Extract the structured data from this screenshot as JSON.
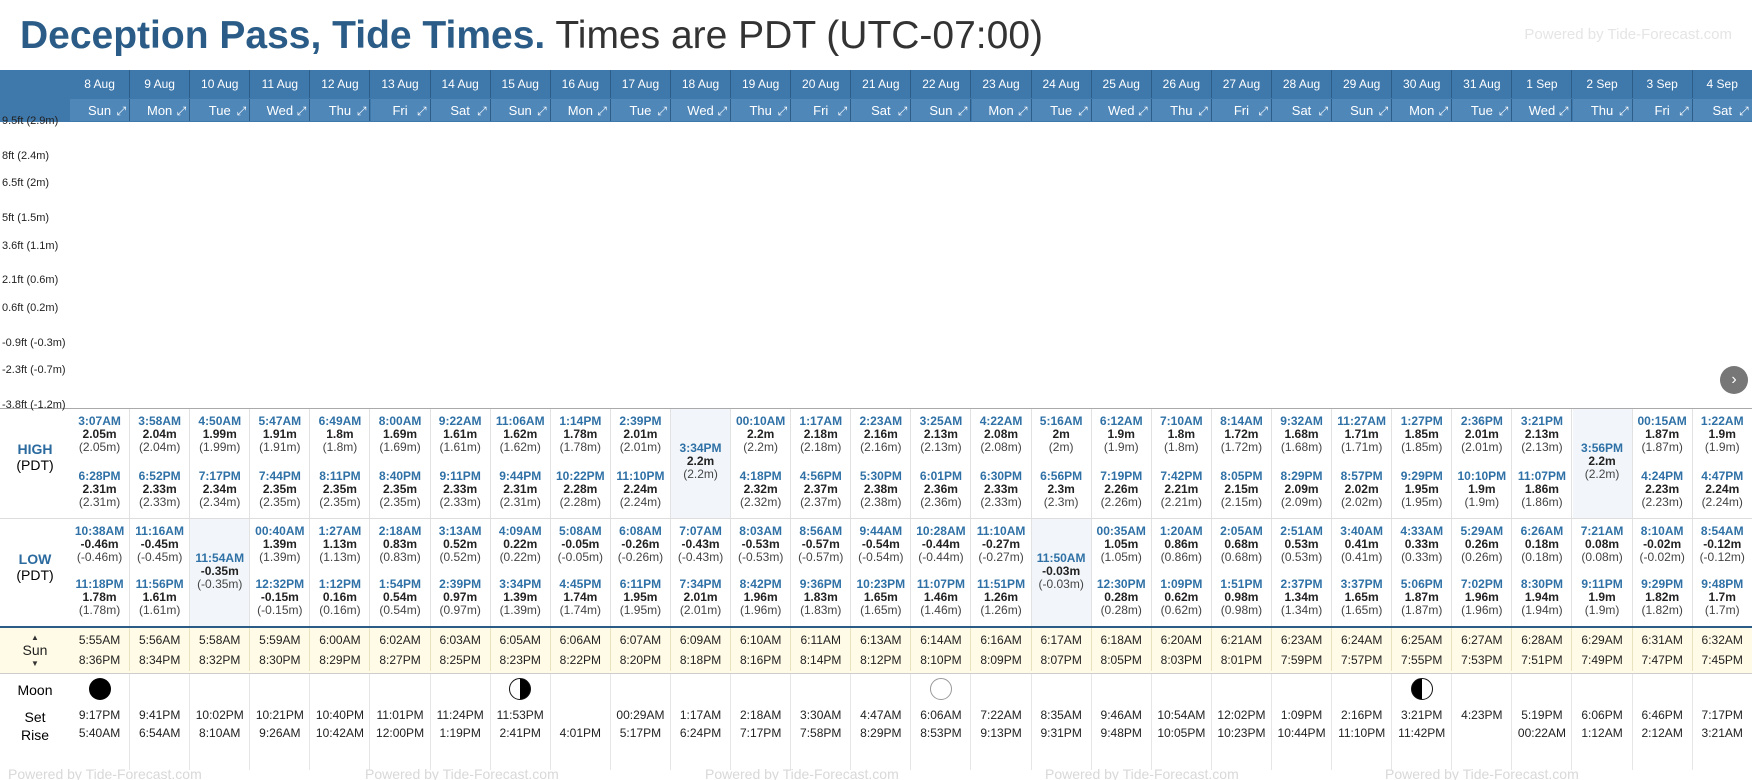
{
  "header": {
    "location": "Deception Pass, Tide Times.",
    "tz_text": "Times are PDT (UTC-07:00)",
    "powered": "Powered by Tide-Forecast.com"
  },
  "y_axis": [
    "9.5ft (2.9m)",
    "8ft (2.4m)",
    "6.5ft (2m)",
    "5ft (1.5m)",
    "3.6ft (1.1m)",
    "2.1ft (0.6m)",
    "0.6ft (0.2m)",
    "-0.9ft (-0.3m)",
    "-2.3ft (-0.7m)",
    "-3.8ft (-1.2m)"
  ],
  "labels": {
    "high": "HIGH",
    "low": "LOW",
    "tz": "(PDT)",
    "sun": "Sun",
    "moon": "Moon",
    "set": "Set",
    "rise": "Rise",
    "up": "▲",
    "down": "▼"
  },
  "colors": {
    "header_bar": "#3f78ab",
    "tide_fill": "#4a7ead",
    "night": "#d9d9d9",
    "accent": "#2a5c87"
  },
  "days": [
    {
      "date": "8 Aug",
      "dow": "Sun",
      "highs": [
        [
          "3:07AM",
          "2.05m",
          2.05
        ],
        [
          "6:28PM",
          "2.31m",
          2.31
        ]
      ],
      "lows": [
        [
          "10:38AM",
          "-0.46m",
          -0.46
        ],
        [
          "11:18PM",
          "1.78m",
          1.78
        ]
      ],
      "sunrise": "5:55AM",
      "sunset": "8:36PM",
      "moon": "full",
      "moonset": "9:17PM",
      "moonrise": "5:40AM"
    },
    {
      "date": "9 Aug",
      "dow": "Mon",
      "highs": [
        [
          "3:58AM",
          "2.04m",
          2.04
        ],
        [
          "6:52PM",
          "2.33m",
          2.33
        ]
      ],
      "lows": [
        [
          "11:16AM",
          "-0.45m",
          -0.45
        ],
        [
          "11:56PM",
          "1.61m",
          1.61
        ]
      ],
      "sunrise": "5:56AM",
      "sunset": "8:34PM",
      "moon": "",
      "moonset": "9:41PM",
      "moonrise": "6:54AM"
    },
    {
      "date": "10 Aug",
      "dow": "Tue",
      "highs": [
        [
          "4:50AM",
          "1.99m",
          1.99
        ],
        [
          "7:17PM",
          "2.34m",
          2.34
        ]
      ],
      "lows": [
        [
          "11:54AM",
          "-0.35m",
          -0.35
        ]
      ],
      "sunrise": "5:58AM",
      "sunset": "8:32PM",
      "moon": "",
      "moonset": "10:02PM",
      "moonrise": "8:10AM"
    },
    {
      "date": "11 Aug",
      "dow": "Wed",
      "highs": [
        [
          "5:47AM",
          "1.91m",
          1.91
        ],
        [
          "7:44PM",
          "2.35m",
          2.35
        ]
      ],
      "lows": [
        [
          "00:40AM",
          "1.39m",
          1.39
        ],
        [
          "12:32PM",
          "-0.15m",
          -0.15
        ]
      ],
      "sunrise": "5:59AM",
      "sunset": "8:30PM",
      "moon": "",
      "moonset": "10:21PM",
      "moonrise": "9:26AM"
    },
    {
      "date": "12 Aug",
      "dow": "Thu",
      "highs": [
        [
          "6:49AM",
          "1.8m",
          1.8
        ],
        [
          "8:11PM",
          "2.35m",
          2.35
        ]
      ],
      "lows": [
        [
          "1:27AM",
          "1.13m",
          1.13
        ],
        [
          "1:12PM",
          "0.16m",
          0.16
        ]
      ],
      "sunrise": "6:00AM",
      "sunset": "8:29PM",
      "moon": "",
      "moonset": "10:40PM",
      "moonrise": "10:42AM"
    },
    {
      "date": "13 Aug",
      "dow": "Fri",
      "highs": [
        [
          "8:00AM",
          "1.69m",
          1.69
        ],
        [
          "8:40PM",
          "2.35m",
          2.35
        ]
      ],
      "lows": [
        [
          "2:18AM",
          "0.83m",
          0.83
        ],
        [
          "1:54PM",
          "0.54m",
          0.54
        ]
      ],
      "sunrise": "6:02AM",
      "sunset": "8:27PM",
      "moon": "",
      "moonset": "11:01PM",
      "moonrise": "12:00PM"
    },
    {
      "date": "14 Aug",
      "dow": "Sat",
      "highs": [
        [
          "9:22AM",
          "1.61m",
          1.61
        ],
        [
          "9:11PM",
          "2.33m",
          2.33
        ]
      ],
      "lows": [
        [
          "3:13AM",
          "0.52m",
          0.52
        ],
        [
          "2:39PM",
          "0.97m",
          0.97
        ]
      ],
      "sunrise": "6:03AM",
      "sunset": "8:25PM",
      "moon": "",
      "moonset": "11:24PM",
      "moonrise": "1:19PM"
    },
    {
      "date": "15 Aug",
      "dow": "Sun",
      "highs": [
        [
          "11:06AM",
          "1.62m",
          1.62
        ],
        [
          "9:44PM",
          "2.31m",
          2.31
        ]
      ],
      "lows": [
        [
          "4:09AM",
          "0.22m",
          0.22
        ],
        [
          "3:34PM",
          "1.39m",
          1.39
        ]
      ],
      "sunrise": "6:05AM",
      "sunset": "8:23PM",
      "moon": "first",
      "moonset": "11:53PM",
      "moonrise": "2:41PM"
    },
    {
      "date": "16 Aug",
      "dow": "Mon",
      "highs": [
        [
          "1:14PM",
          "1.78m",
          1.78
        ],
        [
          "10:22PM",
          "2.28m",
          2.28
        ]
      ],
      "lows": [
        [
          "5:08AM",
          "-0.05m",
          -0.05
        ],
        [
          "4:45PM",
          "1.74m",
          1.74
        ]
      ],
      "sunrise": "6:06AM",
      "sunset": "8:22PM",
      "moon": "",
      "moonset": "",
      "moonrise": "4:01PM"
    },
    {
      "date": "17 Aug",
      "dow": "Tue",
      "highs": [
        [
          "2:39PM",
          "2.01m",
          2.01
        ],
        [
          "11:10PM",
          "2.24m",
          2.24
        ]
      ],
      "lows": [
        [
          "6:08AM",
          "-0.26m",
          -0.26
        ],
        [
          "6:11PM",
          "1.95m",
          1.95
        ]
      ],
      "sunrise": "6:07AM",
      "sunset": "8:20PM",
      "moon": "",
      "moonset": "00:29AM",
      "moonrise": "5:17PM"
    },
    {
      "date": "18 Aug",
      "dow": "Wed",
      "highs": [
        [
          "3:34PM",
          "2.2m",
          2.2
        ]
      ],
      "lows": [
        [
          "7:07AM",
          "-0.43m",
          -0.43
        ],
        [
          "7:34PM",
          "2.01m",
          2.01
        ]
      ],
      "sunrise": "6:09AM",
      "sunset": "8:18PM",
      "moon": "",
      "moonset": "1:17AM",
      "moonrise": "6:24PM"
    },
    {
      "date": "19 Aug",
      "dow": "Thu",
      "highs": [
        [
          "00:10AM",
          "2.2m",
          2.2
        ],
        [
          "4:18PM",
          "2.32m",
          2.32
        ]
      ],
      "lows": [
        [
          "8:03AM",
          "-0.53m",
          -0.53
        ],
        [
          "8:42PM",
          "1.96m",
          1.96
        ]
      ],
      "sunrise": "6:10AM",
      "sunset": "8:16PM",
      "moon": "",
      "moonset": "2:18AM",
      "moonrise": "7:17PM"
    },
    {
      "date": "20 Aug",
      "dow": "Fri",
      "highs": [
        [
          "1:17AM",
          "2.18m",
          2.18
        ],
        [
          "4:56PM",
          "2.37m",
          2.37
        ]
      ],
      "lows": [
        [
          "8:56AM",
          "-0.57m",
          -0.57
        ],
        [
          "9:36PM",
          "1.83m",
          1.83
        ]
      ],
      "sunrise": "6:11AM",
      "sunset": "8:14PM",
      "moon": "",
      "moonset": "3:30AM",
      "moonrise": "7:58PM"
    },
    {
      "date": "21 Aug",
      "dow": "Sat",
      "highs": [
        [
          "2:23AM",
          "2.16m",
          2.16
        ],
        [
          "5:30PM",
          "2.38m",
          2.38
        ]
      ],
      "lows": [
        [
          "9:44AM",
          "-0.54m",
          -0.54
        ],
        [
          "10:23PM",
          "1.65m",
          1.65
        ]
      ],
      "sunrise": "6:13AM",
      "sunset": "8:12PM",
      "moon": "",
      "moonset": "4:47AM",
      "moonrise": "8:29PM"
    },
    {
      "date": "22 Aug",
      "dow": "Sun",
      "highs": [
        [
          "3:25AM",
          "2.13m",
          2.13
        ],
        [
          "6:01PM",
          "2.36m",
          2.36
        ]
      ],
      "lows": [
        [
          "10:28AM",
          "-0.44m",
          -0.44
        ],
        [
          "11:07PM",
          "1.46m",
          1.46
        ]
      ],
      "sunrise": "6:14AM",
      "sunset": "8:10PM",
      "moon": "new",
      "moonset": "6:06AM",
      "moonrise": "8:53PM"
    },
    {
      "date": "23 Aug",
      "dow": "Mon",
      "highs": [
        [
          "4:22AM",
          "2.08m",
          2.08
        ],
        [
          "6:30PM",
          "2.33m",
          2.33
        ]
      ],
      "lows": [
        [
          "11:10AM",
          "-0.27m",
          -0.27
        ],
        [
          "11:51PM",
          "1.26m",
          1.26
        ]
      ],
      "sunrise": "6:16AM",
      "sunset": "8:09PM",
      "moon": "",
      "moonset": "7:22AM",
      "moonrise": "9:13PM"
    },
    {
      "date": "24 Aug",
      "dow": "Tue",
      "highs": [
        [
          "5:16AM",
          "2m",
          2.0
        ],
        [
          "6:56PM",
          "2.3m",
          2.3
        ]
      ],
      "lows": [
        [
          "11:50AM",
          "-0.03m",
          -0.03
        ]
      ],
      "sunrise": "6:17AM",
      "sunset": "8:07PM",
      "moon": "",
      "moonset": "8:35AM",
      "moonrise": "9:31PM"
    },
    {
      "date": "25 Aug",
      "dow": "Wed",
      "highs": [
        [
          "6:12AM",
          "1.9m",
          1.9
        ],
        [
          "7:19PM",
          "2.26m",
          2.26
        ]
      ],
      "lows": [
        [
          "00:35AM",
          "1.05m",
          1.05
        ],
        [
          "12:30PM",
          "0.28m",
          0.28
        ]
      ],
      "sunrise": "6:18AM",
      "sunset": "8:05PM",
      "moon": "",
      "moonset": "9:46AM",
      "moonrise": "9:48PM"
    },
    {
      "date": "26 Aug",
      "dow": "Thu",
      "highs": [
        [
          "7:10AM",
          "1.8m",
          1.8
        ],
        [
          "7:42PM",
          "2.21m",
          2.21
        ]
      ],
      "lows": [
        [
          "1:20AM",
          "0.86m",
          0.86
        ],
        [
          "1:09PM",
          "0.62m",
          0.62
        ]
      ],
      "sunrise": "6:20AM",
      "sunset": "8:03PM",
      "moon": "",
      "moonset": "10:54AM",
      "moonrise": "10:05PM"
    },
    {
      "date": "27 Aug",
      "dow": "Fri",
      "highs": [
        [
          "8:14AM",
          "1.72m",
          1.72
        ],
        [
          "8:05PM",
          "2.15m",
          2.15
        ]
      ],
      "lows": [
        [
          "2:05AM",
          "0.68m",
          0.68
        ],
        [
          "1:51PM",
          "0.98m",
          0.98
        ]
      ],
      "sunrise": "6:21AM",
      "sunset": "8:01PM",
      "moon": "",
      "moonset": "12:02PM",
      "moonrise": "10:23PM"
    },
    {
      "date": "28 Aug",
      "dow": "Sat",
      "highs": [
        [
          "9:32AM",
          "1.68m",
          1.68
        ],
        [
          "8:29PM",
          "2.09m",
          2.09
        ]
      ],
      "lows": [
        [
          "2:51AM",
          "0.53m",
          0.53
        ],
        [
          "2:37PM",
          "1.34m",
          1.34
        ]
      ],
      "sunrise": "6:23AM",
      "sunset": "7:59PM",
      "moon": "",
      "moonset": "1:09PM",
      "moonrise": "10:44PM"
    },
    {
      "date": "29 Aug",
      "dow": "Sun",
      "highs": [
        [
          "11:27AM",
          "1.71m",
          1.71
        ],
        [
          "8:57PM",
          "2.02m",
          2.02
        ]
      ],
      "lows": [
        [
          "3:40AM",
          "0.41m",
          0.41
        ],
        [
          "3:37PM",
          "1.65m",
          1.65
        ]
      ],
      "sunrise": "6:24AM",
      "sunset": "7:57PM",
      "moon": "",
      "moonset": "2:16PM",
      "moonrise": "11:10PM"
    },
    {
      "date": "30 Aug",
      "dow": "Mon",
      "highs": [
        [
          "1:27PM",
          "1.85m",
          1.85
        ],
        [
          "9:29PM",
          "1.95m",
          1.95
        ]
      ],
      "lows": [
        [
          "4:33AM",
          "0.33m",
          0.33
        ],
        [
          "5:06PM",
          "1.87m",
          1.87
        ]
      ],
      "sunrise": "6:25AM",
      "sunset": "7:55PM",
      "moon": "last",
      "moonset": "3:21PM",
      "moonrise": "11:42PM"
    },
    {
      "date": "31 Aug",
      "dow": "Tue",
      "highs": [
        [
          "2:36PM",
          "2.01m",
          2.01
        ],
        [
          "10:10PM",
          "1.9m",
          1.9
        ]
      ],
      "lows": [
        [
          "5:29AM",
          "0.26m",
          0.26
        ],
        [
          "7:02PM",
          "1.96m",
          1.96
        ]
      ],
      "sunrise": "6:27AM",
      "sunset": "7:53PM",
      "moon": "",
      "moonset": "4:23PM",
      "moonrise": ""
    },
    {
      "date": "1 Sep",
      "dow": "Wed",
      "highs": [
        [
          "3:21PM",
          "2.13m",
          2.13
        ],
        [
          "11:07PM",
          "1.86m",
          1.86
        ]
      ],
      "lows": [
        [
          "6:26AM",
          "0.18m",
          0.18
        ],
        [
          "8:30PM",
          "1.94m",
          1.94
        ]
      ],
      "sunrise": "6:28AM",
      "sunset": "7:51PM",
      "moon": "",
      "moonset": "5:19PM",
      "moonrise": "00:22AM"
    },
    {
      "date": "2 Sep",
      "dow": "Thu",
      "highs": [
        [
          "3:56PM",
          "2.2m",
          2.2
        ]
      ],
      "lows": [
        [
          "7:21AM",
          "0.08m",
          0.08
        ],
        [
          "9:11PM",
          "1.9m",
          1.9
        ]
      ],
      "sunrise": "6:29AM",
      "sunset": "7:49PM",
      "moon": "",
      "moonset": "6:06PM",
      "moonrise": "1:12AM"
    },
    {
      "date": "3 Sep",
      "dow": "Fri",
      "highs": [
        [
          "00:15AM",
          "1.87m",
          1.87
        ],
        [
          "4:24PM",
          "2.23m",
          2.23
        ]
      ],
      "lows": [
        [
          "8:10AM",
          "-0.02m",
          -0.02
        ],
        [
          "9:29PM",
          "1.82m",
          1.82
        ]
      ],
      "sunrise": "6:31AM",
      "sunset": "7:47PM",
      "moon": "",
      "moonset": "6:46PM",
      "moonrise": "2:12AM"
    },
    {
      "date": "4 Sep",
      "dow": "Sat",
      "highs": [
        [
          "1:22AM",
          "1.9m",
          1.9
        ],
        [
          "4:47PM",
          "2.24m",
          2.24
        ]
      ],
      "lows": [
        [
          "8:54AM",
          "-0.12m",
          -0.12
        ],
        [
          "9:48PM",
          "1.7m",
          1.7
        ]
      ],
      "sunrise": "6:32AM",
      "sunset": "7:45PM",
      "moon": "",
      "moonset": "7:17PM",
      "moonrise": "3:21AM"
    }
  ]
}
